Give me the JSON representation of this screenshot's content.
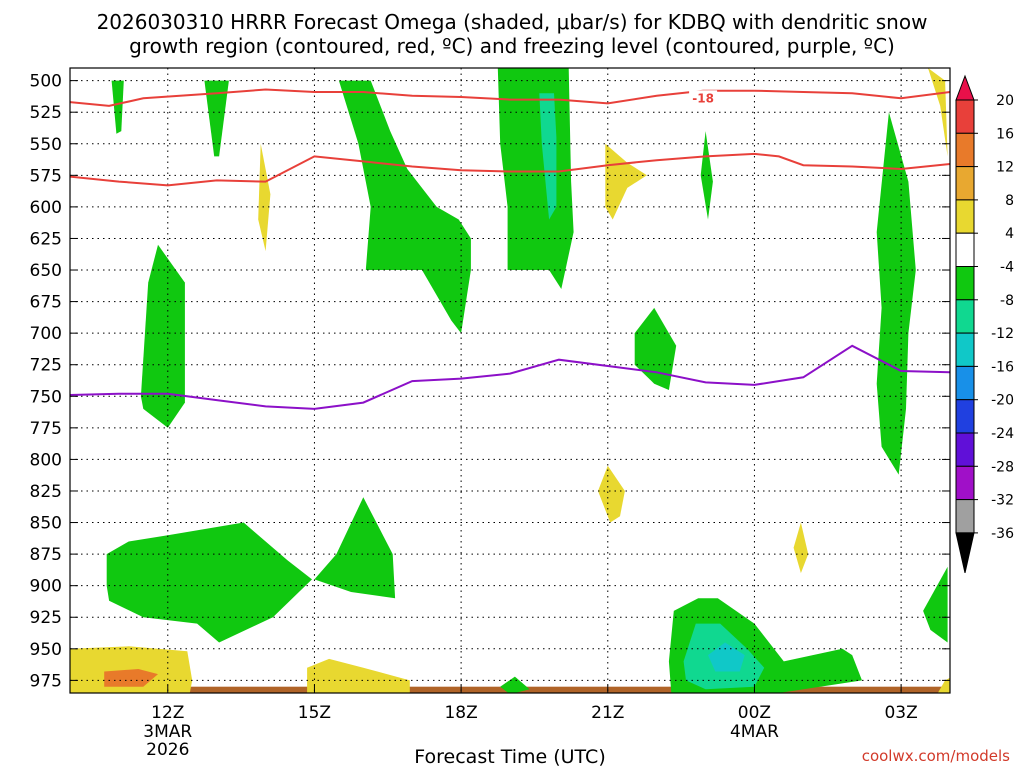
{
  "title": {
    "line1": "2026030310 HRRR Forecast Omega (shaded, μbar/s) for KDBQ with dendritic snow",
    "line2": "growth region (contoured, red, ºC) and freezing level (contoured, purple, ºC)"
  },
  "watermark": "coolwx.com/models",
  "chart_data": {
    "type": "heatmap",
    "title": "2026030310 HRRR Forecast Omega (shaded, μbar/s) for KDBQ with dendritic snow growth region (contoured, red, ºC) and freezing level (contoured, purple, ºC)",
    "xlabel": "Forecast Time (UTC)",
    "ylabel": "",
    "x_range_hours_since_12Z": [
      -2,
      16
    ],
    "y_range_mb": [
      490,
      985
    ],
    "x_ticks": [
      {
        "hour": 0,
        "label": "12Z",
        "sub1": "3MAR",
        "sub2": "2026"
      },
      {
        "hour": 3,
        "label": "15Z",
        "sub1": "",
        "sub2": ""
      },
      {
        "hour": 6,
        "label": "18Z",
        "sub1": "",
        "sub2": ""
      },
      {
        "hour": 9,
        "label": "21Z",
        "sub1": "",
        "sub2": ""
      },
      {
        "hour": 12,
        "label": "00Z",
        "sub1": "4MAR",
        "sub2": ""
      },
      {
        "hour": 15,
        "label": "03Z",
        "sub1": "",
        "sub2": ""
      }
    ],
    "y_ticks": [
      500,
      525,
      550,
      575,
      600,
      625,
      650,
      675,
      700,
      725,
      750,
      775,
      800,
      825,
      850,
      875,
      900,
      925,
      950,
      975
    ],
    "grid": true,
    "colorbar": {
      "levels": [
        "20",
        "16",
        "12",
        "8",
        "4",
        "-4",
        "-8",
        "-12",
        "-16",
        "-20",
        "-24",
        "-28",
        "-32",
        "-36"
      ],
      "colors": [
        "#e8104a",
        "#e8403a",
        "#e87a2a",
        "#e8a830",
        "#e8d830",
        "#ffffff",
        "#10c810",
        "#10d890",
        "#10c8c8",
        "#1890e8",
        "#2040e0",
        "#6010d8",
        "#a010c8",
        "#a0a0a0",
        "#000000"
      ]
    },
    "omega_regions": [
      {
        "color": "#10c810",
        "points": [
          [
            -1.15,
            500
          ],
          [
            -0.9,
            500
          ],
          [
            -0.95,
            540
          ],
          [
            -1.05,
            542
          ]
        ]
      },
      {
        "color": "#10c810",
        "points": [
          [
            0.75,
            500
          ],
          [
            1.25,
            500
          ],
          [
            1.05,
            560
          ],
          [
            0.95,
            560
          ]
        ]
      },
      {
        "color": "#e8d830",
        "points": [
          [
            1.9,
            550
          ],
          [
            2.1,
            590
          ],
          [
            2.0,
            635
          ],
          [
            1.85,
            610
          ]
        ]
      },
      {
        "color": "#10c810",
        "points": [
          [
            -0.55,
            750
          ],
          [
            -0.4,
            660
          ],
          [
            -0.2,
            630
          ],
          [
            0.35,
            660
          ],
          [
            0.35,
            755
          ],
          [
            0.0,
            775
          ],
          [
            -0.5,
            760
          ]
        ]
      },
      {
        "color": "#10c810",
        "points": [
          [
            3.5,
            500
          ],
          [
            4.15,
            500
          ],
          [
            4.55,
            540
          ],
          [
            4.9,
            570
          ],
          [
            5.5,
            600
          ],
          [
            5.95,
            610
          ],
          [
            6.2,
            625
          ],
          [
            6.2,
            650
          ],
          [
            6.0,
            700
          ],
          [
            5.8,
            690
          ],
          [
            5.2,
            650
          ],
          [
            4.05,
            650
          ],
          [
            4.15,
            600
          ],
          [
            3.9,
            550
          ]
        ]
      },
      {
        "color": "#10c810",
        "points": [
          [
            6.75,
            490
          ],
          [
            8.2,
            490
          ],
          [
            8.25,
            580
          ],
          [
            8.3,
            620
          ],
          [
            8.05,
            665
          ],
          [
            7.8,
            650
          ],
          [
            6.95,
            650
          ],
          [
            6.95,
            600
          ],
          [
            6.8,
            550
          ]
        ]
      },
      {
        "color": "#10d890",
        "points": [
          [
            7.6,
            510
          ],
          [
            7.9,
            510
          ],
          [
            7.95,
            545
          ],
          [
            7.95,
            600
          ],
          [
            7.8,
            610
          ],
          [
            7.65,
            550
          ]
        ]
      },
      {
        "color": "#e8d830",
        "points": [
          [
            8.95,
            550
          ],
          [
            9.4,
            565
          ],
          [
            9.8,
            575
          ],
          [
            9.4,
            585
          ],
          [
            9.1,
            610
          ],
          [
            8.95,
            600
          ]
        ]
      },
      {
        "color": "#10c810",
        "points": [
          [
            9.55,
            700
          ],
          [
            9.95,
            680
          ],
          [
            10.4,
            710
          ],
          [
            10.25,
            745
          ],
          [
            9.95,
            740
          ],
          [
            9.55,
            725
          ]
        ]
      },
      {
        "color": "#10c810",
        "points": [
          [
            11.0,
            540
          ],
          [
            11.15,
            580
          ],
          [
            11.05,
            610
          ],
          [
            10.9,
            575
          ]
        ]
      },
      {
        "color": "#10c810",
        "points": [
          [
            14.75,
            525
          ],
          [
            15.15,
            580
          ],
          [
            15.3,
            650
          ],
          [
            15.15,
            700
          ],
          [
            15.1,
            760
          ],
          [
            14.95,
            812
          ],
          [
            14.6,
            790
          ],
          [
            14.5,
            740
          ],
          [
            14.6,
            680
          ],
          [
            14.5,
            620
          ]
        ]
      },
      {
        "color": "#e8d830",
        "points": [
          [
            15.55,
            490
          ],
          [
            15.9,
            500
          ],
          [
            15.95,
            560
          ],
          [
            15.8,
            520
          ]
        ]
      },
      {
        "color": "#e8d830",
        "points": [
          [
            8.8,
            825
          ],
          [
            9.0,
            805
          ],
          [
            9.35,
            825
          ],
          [
            9.25,
            845
          ],
          [
            9.05,
            850
          ]
        ]
      },
      {
        "color": "#e8d830",
        "points": [
          [
            12.8,
            870
          ],
          [
            12.95,
            850
          ],
          [
            13.1,
            875
          ],
          [
            12.95,
            890
          ]
        ]
      },
      {
        "color": "#10c810",
        "points": [
          [
            -1.25,
            900
          ],
          [
            -1.25,
            875
          ],
          [
            -0.8,
            865
          ],
          [
            0.0,
            860
          ],
          [
            1.55,
            850
          ],
          [
            2.45,
            880
          ],
          [
            2.95,
            895
          ],
          [
            2.15,
            925
          ],
          [
            1.05,
            945
          ],
          [
            0.6,
            930
          ],
          [
            -0.5,
            925
          ],
          [
            -1.2,
            912
          ]
        ]
      },
      {
        "color": "#10c810",
        "points": [
          [
            3.0,
            895
          ],
          [
            3.45,
            875
          ],
          [
            4.0,
            830
          ],
          [
            4.6,
            875
          ],
          [
            4.65,
            910
          ],
          [
            3.75,
            905
          ]
        ]
      },
      {
        "color": "#10c810",
        "points": [
          [
            10.25,
            960
          ],
          [
            10.35,
            920
          ],
          [
            10.85,
            910
          ],
          [
            11.25,
            910
          ],
          [
            12.0,
            930
          ],
          [
            12.6,
            960
          ],
          [
            13.8,
            950
          ],
          [
            14.0,
            955
          ],
          [
            14.2,
            975
          ],
          [
            12.5,
            985
          ],
          [
            10.3,
            985
          ]
        ]
      },
      {
        "color": "#10d890",
        "points": [
          [
            10.55,
            960
          ],
          [
            10.8,
            930
          ],
          [
            11.3,
            930
          ],
          [
            11.85,
            950
          ],
          [
            12.2,
            965
          ],
          [
            12.0,
            980
          ],
          [
            11.0,
            982
          ],
          [
            10.6,
            975
          ]
        ]
      },
      {
        "color": "#10c8c8",
        "points": [
          [
            11.05,
            955
          ],
          [
            11.4,
            945
          ],
          [
            11.8,
            955
          ],
          [
            11.7,
            968
          ],
          [
            11.2,
            968
          ]
        ]
      },
      {
        "color": "#10c810",
        "points": [
          [
            15.45,
            920
          ],
          [
            15.95,
            885
          ],
          [
            15.95,
            945
          ],
          [
            15.6,
            935
          ]
        ]
      },
      {
        "color": "#10c810",
        "points": [
          [
            6.8,
            980
          ],
          [
            7.1,
            972
          ],
          [
            7.4,
            982
          ],
          [
            7.0,
            986
          ]
        ]
      },
      {
        "color": "#e8d830",
        "points": [
          [
            -2,
            950
          ],
          [
            -0.8,
            948
          ],
          [
            0.4,
            952
          ],
          [
            0.5,
            975
          ],
          [
            0.45,
            985
          ],
          [
            -2,
            985
          ]
        ]
      },
      {
        "color": "#e87a2a",
        "points": [
          [
            -1.3,
            968
          ],
          [
            -0.6,
            966
          ],
          [
            -0.2,
            970
          ],
          [
            -0.5,
            980
          ],
          [
            -1.3,
            980
          ]
        ]
      },
      {
        "color": "#e8d830",
        "points": [
          [
            2.85,
            965
          ],
          [
            3.3,
            958
          ],
          [
            4.0,
            965
          ],
          [
            4.95,
            975
          ],
          [
            4.95,
            985
          ],
          [
            2.85,
            985
          ]
        ]
      },
      {
        "color": "#e8d830",
        "points": [
          [
            15.75,
            985
          ],
          [
            15.9,
            975
          ],
          [
            16,
            973
          ],
          [
            16,
            985
          ]
        ]
      }
    ],
    "dgz_contours": [
      {
        "label": "-18",
        "label_at": [
          10.95,
          514
        ],
        "points": [
          [
            -2,
            517
          ],
          [
            -1.2,
            520
          ],
          [
            -0.5,
            514
          ],
          [
            1.0,
            510
          ],
          [
            2.0,
            507
          ],
          [
            3.0,
            509
          ],
          [
            4.0,
            509
          ],
          [
            5.0,
            512
          ],
          [
            6.0,
            513
          ],
          [
            7.0,
            515
          ],
          [
            8.0,
            515
          ],
          [
            9.0,
            518
          ],
          [
            10.0,
            512
          ],
          [
            10.95,
            508
          ],
          [
            12.0,
            508
          ],
          [
            13.0,
            509
          ],
          [
            14.0,
            510
          ],
          [
            15.0,
            514
          ],
          [
            16,
            509
          ]
        ]
      },
      {
        "label": "",
        "points": [
          [
            -2,
            576
          ],
          [
            -1.0,
            580
          ],
          [
            0.0,
            583
          ],
          [
            1.0,
            579
          ],
          [
            2.0,
            580
          ],
          [
            2.5,
            570
          ],
          [
            3.0,
            560
          ],
          [
            4.0,
            564
          ],
          [
            5.0,
            568
          ],
          [
            6.0,
            571
          ],
          [
            7.0,
            572
          ],
          [
            8.0,
            572
          ],
          [
            9.0,
            567
          ],
          [
            10.0,
            563
          ],
          [
            11.0,
            560
          ],
          [
            12.0,
            558
          ],
          [
            12.5,
            560
          ],
          [
            13.0,
            567
          ],
          [
            14.0,
            568
          ],
          [
            15.0,
            570
          ],
          [
            16,
            566
          ]
        ]
      }
    ],
    "freezing_level": {
      "points": [
        [
          -2,
          749
        ],
        [
          -1.0,
          748
        ],
        [
          0.0,
          748
        ],
        [
          1.0,
          753
        ],
        [
          2.0,
          758
        ],
        [
          3.0,
          760
        ],
        [
          4.0,
          755
        ],
        [
          5.0,
          738
        ],
        [
          6.0,
          736
        ],
        [
          7.0,
          732
        ],
        [
          8.0,
          721
        ],
        [
          9.0,
          726
        ],
        [
          10.0,
          731
        ],
        [
          11.0,
          739
        ],
        [
          12.0,
          741
        ],
        [
          13.0,
          735
        ],
        [
          14.0,
          710
        ],
        [
          15.0,
          730
        ],
        [
          16,
          731
        ]
      ]
    },
    "ground": {
      "color": "#b06428",
      "from_mb": 980
    }
  }
}
